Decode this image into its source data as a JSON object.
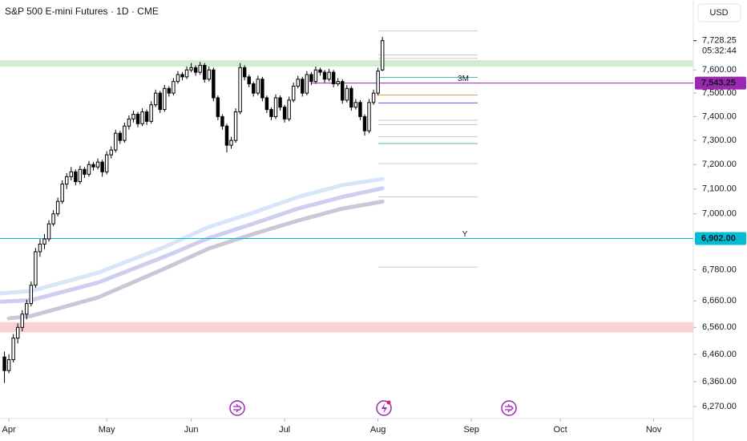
{
  "chart_data": {
    "type": "candlestick",
    "title": "S&P 500 E-mini Futures · 1D · CME",
    "currency": "USD",
    "countdown": "05:32:44",
    "log": true,
    "ylim": [
      6227,
      7910
    ],
    "yticks": [
      {
        "value": 7600,
        "label": "7,600.00"
      },
      {
        "value": 7500,
        "label": "7,500.00"
      },
      {
        "value": 7400,
        "label": "7,400.00"
      },
      {
        "value": 7300,
        "label": "7,300.00"
      },
      {
        "value": 7200,
        "label": "7,200.00"
      },
      {
        "value": 7100,
        "label": "7,100.00"
      },
      {
        "value": 7000,
        "label": "7,000.00"
      },
      {
        "value": 6780,
        "label": "6,780.00"
      },
      {
        "value": 6660,
        "label": "6,660.00"
      },
      {
        "value": 6560,
        "label": "6,560.00"
      },
      {
        "value": 6460,
        "label": "6,460.00"
      },
      {
        "value": 6360,
        "label": "6,360.00"
      },
      {
        "value": 6270,
        "label": "6,270.00"
      }
    ],
    "xlim": [
      -2,
      153.9
    ],
    "xticks": [
      {
        "value": 0,
        "label": "Apr"
      },
      {
        "value": 22,
        "label": "May"
      },
      {
        "value": 41,
        "label": "Jun"
      },
      {
        "value": 62,
        "label": "Jul"
      },
      {
        "value": 83,
        "label": "Aug"
      },
      {
        "value": 104,
        "label": "Sep"
      },
      {
        "value": 124,
        "label": "Oct"
      },
      {
        "value": 145,
        "label": "Nov"
      }
    ],
    "up_color": "#ffffff",
    "down_color": "#000000",
    "x": [
      -1,
      0,
      1,
      2,
      3,
      4,
      5,
      6,
      7,
      8,
      9,
      10,
      11,
      12,
      13,
      14,
      15,
      16,
      17,
      18,
      19,
      20,
      21,
      22,
      23,
      24,
      25,
      26,
      27,
      28,
      29,
      30,
      31,
      32,
      33,
      34,
      35,
      36,
      37,
      38,
      39,
      40,
      41,
      42,
      43,
      44,
      45,
      46,
      47,
      48,
      49,
      50,
      51,
      52,
      53,
      54,
      55,
      56,
      57,
      58,
      59,
      60,
      61,
      62,
      63,
      64,
      65,
      66,
      67,
      68,
      69,
      70,
      71,
      72,
      73,
      74,
      75,
      76,
      77,
      78,
      79,
      80,
      81,
      82,
      83,
      84
    ],
    "ohlc": [
      [
        6450,
        6470,
        6355,
        6400
      ],
      [
        6400,
        6460,
        6390,
        6440
      ],
      [
        6440,
        6535,
        6430,
        6520
      ],
      [
        6520,
        6575,
        6500,
        6560
      ],
      [
        6560,
        6625,
        6545,
        6610
      ],
      [
        6610,
        6665,
        6590,
        6650
      ],
      [
        6650,
        6735,
        6640,
        6720
      ],
      [
        6720,
        6865,
        6710,
        6850
      ],
      [
        6850,
        6900,
        6830,
        6880
      ],
      [
        6880,
        6920,
        6860,
        6900
      ],
      [
        6900,
        6975,
        6890,
        6960
      ],
      [
        6960,
        7015,
        6950,
        7000
      ],
      [
        7000,
        7065,
        6990,
        7050
      ],
      [
        7050,
        7135,
        7040,
        7120
      ],
      [
        7120,
        7165,
        7100,
        7150
      ],
      [
        7150,
        7190,
        7135,
        7170
      ],
      [
        7170,
        7180,
        7115,
        7130
      ],
      [
        7130,
        7195,
        7120,
        7180
      ],
      [
        7180,
        7190,
        7145,
        7160
      ],
      [
        7160,
        7215,
        7150,
        7200
      ],
      [
        7200,
        7210,
        7175,
        7190
      ],
      [
        7190,
        7225,
        7180,
        7210
      ],
      [
        7210,
        7220,
        7150,
        7170
      ],
      [
        7170,
        7255,
        7160,
        7240
      ],
      [
        7240,
        7275,
        7225,
        7260
      ],
      [
        7260,
        7345,
        7250,
        7330
      ],
      [
        7330,
        7340,
        7285,
        7300
      ],
      [
        7300,
        7375,
        7290,
        7360
      ],
      [
        7360,
        7405,
        7345,
        7390
      ],
      [
        7390,
        7425,
        7375,
        7410
      ],
      [
        7410,
        7420,
        7355,
        7370
      ],
      [
        7370,
        7435,
        7360,
        7420
      ],
      [
        7420,
        7430,
        7365,
        7380
      ],
      [
        7380,
        7465,
        7370,
        7450
      ],
      [
        7450,
        7515,
        7440,
        7500
      ],
      [
        7500,
        7510,
        7415,
        7430
      ],
      [
        7430,
        7535,
        7420,
        7520
      ],
      [
        7520,
        7530,
        7485,
        7500
      ],
      [
        7500,
        7565,
        7490,
        7550
      ],
      [
        7550,
        7595,
        7540,
        7580
      ],
      [
        7580,
        7590,
        7555,
        7570
      ],
      [
        7570,
        7615,
        7560,
        7600
      ],
      [
        7600,
        7630,
        7590,
        7610
      ],
      [
        7610,
        7620,
        7575,
        7590
      ],
      [
        7590,
        7635,
        7580,
        7620
      ],
      [
        7620,
        7630,
        7545,
        7560
      ],
      [
        7560,
        7615,
        7550,
        7600
      ],
      [
        7600,
        7610,
        7465,
        7480
      ],
      [
        7480,
        7490,
        7385,
        7400
      ],
      [
        7400,
        7410,
        7345,
        7360
      ],
      [
        7360,
        7370,
        7250,
        7280
      ],
      [
        7280,
        7315,
        7265,
        7300
      ],
      [
        7300,
        7435,
        7290,
        7420
      ],
      [
        7420,
        7630,
        7410,
        7610
      ],
      [
        7610,
        7620,
        7555,
        7570
      ],
      [
        7570,
        7580,
        7525,
        7540
      ],
      [
        7540,
        7550,
        7485,
        7500
      ],
      [
        7500,
        7575,
        7490,
        7560
      ],
      [
        7560,
        7570,
        7465,
        7480
      ],
      [
        7480,
        7490,
        7415,
        7430
      ],
      [
        7430,
        7440,
        7385,
        7400
      ],
      [
        7400,
        7495,
        7390,
        7480
      ],
      [
        7480,
        7490,
        7425,
        7440
      ],
      [
        7440,
        7450,
        7375,
        7390
      ],
      [
        7390,
        7485,
        7380,
        7470
      ],
      [
        7470,
        7545,
        7460,
        7530
      ],
      [
        7530,
        7575,
        7520,
        7560
      ],
      [
        7560,
        7570,
        7485,
        7500
      ],
      [
        7500,
        7595,
        7490,
        7580
      ],
      [
        7580,
        7590,
        7535,
        7550
      ],
      [
        7550,
        7615,
        7540,
        7600
      ],
      [
        7600,
        7610,
        7575,
        7590
      ],
      [
        7590,
        7600,
        7545,
        7560
      ],
      [
        7560,
        7605,
        7550,
        7590
      ],
      [
        7590,
        7600,
        7525,
        7540
      ],
      [
        7540,
        7565,
        7530,
        7550
      ],
      [
        7550,
        7560,
        7455,
        7470
      ],
      [
        7470,
        7535,
        7460,
        7520
      ],
      [
        7520,
        7530,
        7425,
        7440
      ],
      [
        7440,
        7475,
        7430,
        7460
      ],
      [
        7460,
        7470,
        7385,
        7400
      ],
      [
        7400,
        7410,
        7320,
        7340
      ],
      [
        7340,
        7475,
        7330,
        7460
      ],
      [
        7460,
        7515,
        7450,
        7500
      ],
      [
        7500,
        7610,
        7490,
        7595
      ],
      [
        7600,
        7745,
        7595,
        7728.25
      ]
    ],
    "lines": [
      {
        "color": "#d6e6f8",
        "x": [
          -2,
          5,
          20,
          35,
          45,
          55,
          65,
          75,
          84
        ],
        "values": [
          6689,
          6698,
          6768,
          6869,
          6948,
          7005,
          7068,
          7116,
          7141
        ]
      },
      {
        "color": "#cfcdf0",
        "x": [
          -2,
          5,
          20,
          35,
          45,
          55,
          65,
          75,
          84
        ],
        "values": [
          6657,
          6663,
          6730,
          6831,
          6904,
          6961,
          7021,
          7068,
          7103
        ]
      },
      {
        "color": "#cac8d6",
        "x": [
          0,
          5,
          20,
          35,
          45,
          55,
          65,
          75,
          84
        ],
        "values": [
          6594,
          6603,
          6673,
          6784,
          6863,
          6920,
          6973,
          7021,
          7049
        ]
      }
    ],
    "zones": [
      {
        "from": 7616,
        "to": 7641,
        "color": "#d4ecd2"
      },
      {
        "from": 6543,
        "to": 6578,
        "color": "#f8d2d4"
      }
    ],
    "levels": [
      {
        "value": 7771,
        "color": "#c8c8c8"
      },
      {
        "value": 7666,
        "color": "#c8c8c8"
      },
      {
        "value": 7650,
        "color": "#c8c8c8"
      },
      {
        "value": 7568,
        "color": "#4dbcbc"
      },
      {
        "value": 7492,
        "color": "#f5a04a"
      },
      {
        "value": 7458,
        "color": "#5a62d8"
      },
      {
        "value": 7385,
        "color": "#c8c8c8"
      },
      {
        "value": 7366,
        "color": "#c8c8c8"
      },
      {
        "value": 7315,
        "color": "#c8c8c8"
      },
      {
        "value": 7287,
        "color": "#4dbcbc"
      },
      {
        "value": 7204,
        "color": "#c8c8c8"
      },
      {
        "value": 7068,
        "color": "#c8c8c8"
      },
      {
        "value": 6790,
        "color": "#c8c8c8"
      }
    ],
    "price_labels": [
      {
        "value": 7728.25,
        "label": "7,728.25",
        "color": "#ffffff",
        "text_color": "#131722"
      },
      {
        "value": 7543.25,
        "label": "7,543.25",
        "color": "#9c27b0",
        "text_color": "#ffffff",
        "line_label": "3M",
        "line_from": 68
      },
      {
        "value": 6902,
        "label": "6,902.00",
        "color": "#00bcd4",
        "text_color": "#131722",
        "line_label": "Y",
        "line_from": -2
      }
    ]
  }
}
